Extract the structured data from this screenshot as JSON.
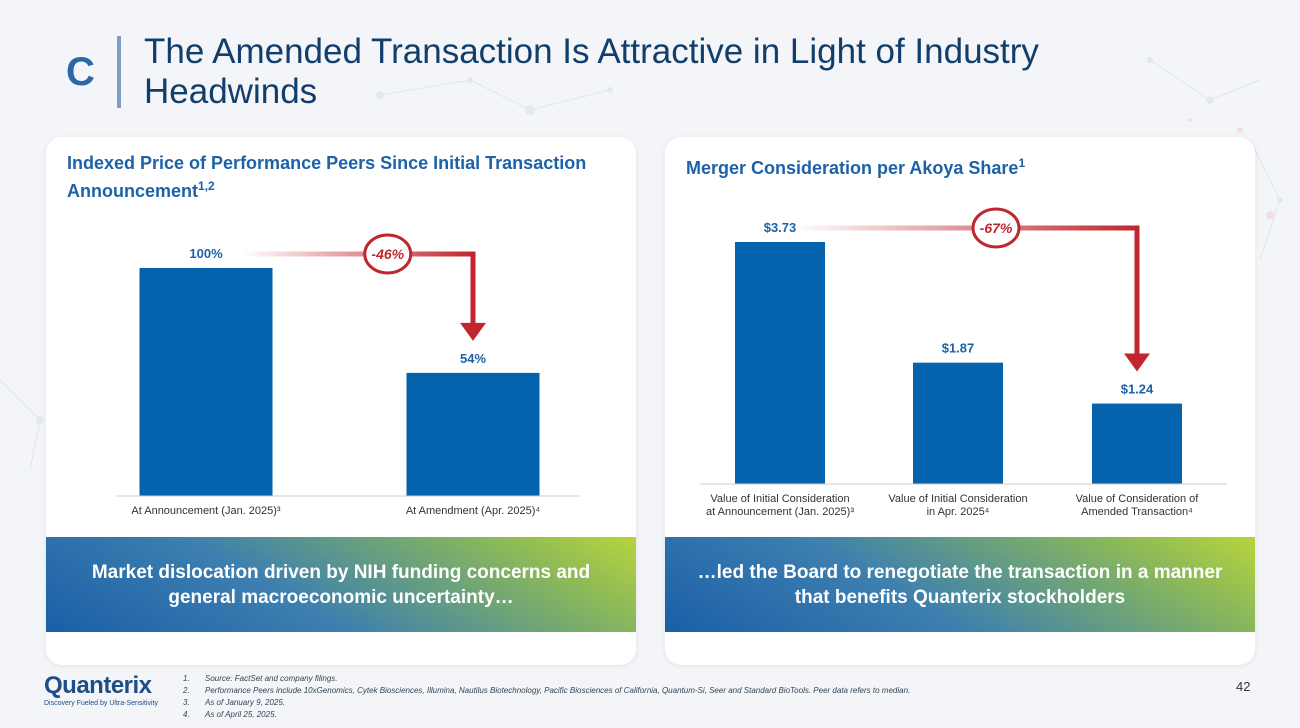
{
  "header": {
    "section_letter": "C",
    "title": "The Amended Transaction Is Attractive in Light of Industry Headwinds"
  },
  "left_panel": {
    "title": "Indexed Price of Performance Peers Since Initial Transaction Announcement",
    "title_sup": "1,2",
    "banner": "Market dislocation driven by NIH funding concerns and general macroeconomic uncertainty…"
  },
  "right_panel": {
    "title": "Merger Consideration per Akoya Share",
    "title_sup": "1",
    "banner": "…led the Board to renegotiate the transaction in a manner that benefits Quanterix stockholders"
  },
  "chart_data": [
    {
      "type": "bar",
      "title": "Indexed Price of Performance Peers Since Initial Transaction Announcement",
      "categories": [
        "At Announcement (Jan. 2025)³",
        "At Amendment (Apr. 2025)⁴"
      ],
      "values": [
        100,
        54
      ],
      "data_labels": [
        "100%",
        "54%"
      ],
      "ylim": [
        0,
        100
      ],
      "annotation": {
        "label": "-46%",
        "from": 0,
        "to": 1
      },
      "bar_color": "#0563ae"
    },
    {
      "type": "bar",
      "title": "Merger Consideration per Akoya Share",
      "categories": [
        [
          "Value of Initial Consideration",
          "at Announcement (Jan. 2025)³"
        ],
        [
          "Value of Initial Consideration",
          "in Apr. 2025⁴"
        ],
        [
          "Value of Consideration of",
          "Amended Transaction⁴"
        ]
      ],
      "values": [
        3.73,
        1.87,
        1.24
      ],
      "data_labels": [
        "$3.73",
        "$1.87",
        "$1.24"
      ],
      "ylim": [
        0,
        3.73
      ],
      "annotation": {
        "label": "-67%",
        "from": 0,
        "to": 2
      },
      "bar_color": "#0563ae"
    }
  ],
  "colors": {
    "bar": "#0563ae",
    "arrow": "#c0262d",
    "title_blue": "#1d62a8",
    "data_label": "#1d62a8"
  },
  "footer": {
    "logo_name": "Quanterix",
    "logo_tagline": "Discovery Fueled by Ultra-Sensitivity",
    "footnotes": [
      {
        "num": "1.",
        "text": "Source: FactSet and company filings."
      },
      {
        "num": "2.",
        "text": "Performance Peers include 10xGenomics, Cytek Biosciences, Illumina, Nautilus Biotechnology, Pacific Biosciences of California, Quantum-Si, Seer and Standard BioTools. Peer data refers to median."
      },
      {
        "num": "3.",
        "text": "As of January 9, 2025."
      },
      {
        "num": "4.",
        "text": "As of April 25, 2025."
      }
    ],
    "page_number": "42"
  }
}
